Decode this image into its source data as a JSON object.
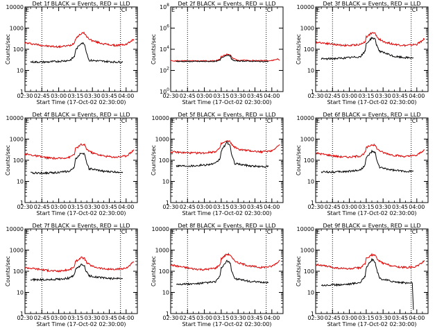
{
  "x_tick_labels_a": [
    "02:30",
    "02:45",
    "03:00",
    "03:15",
    "03:30",
    "03:45",
    "04:00"
  ],
  "x_tick_labels_b": [
    "02:30",
    "02:45",
    "03:00",
    "03:15",
    "03:30",
    "03:45",
    "04:00"
  ],
  "xlabel": "Start Time (17-Oct-02 02:30:00)",
  "ylabel": "Counts/sec",
  "colors": {
    "events": "#000000",
    "lld": "#e00000",
    "axes": "#000000"
  },
  "chart_data": [
    {
      "type": "line",
      "panel": "1",
      "title": "Det 1f BLACK = Events, RED = LLD",
      "xlim_min": [
        0,
        100
      ],
      "yscale": "log",
      "ylim": [
        1,
        10000
      ],
      "y_ticks": [
        "1",
        "10",
        "100",
        "1000",
        "10000"
      ],
      "vlines_min": [
        15,
        85
      ],
      "markers": [
        "E",
        "C"
      ],
      "series": [
        {
          "name": "LLD",
          "color": "#e00000",
          "x": [
            0,
            10,
            20,
            30,
            40,
            44,
            45,
            50,
            53,
            55,
            60,
            70,
            80,
            90,
            95,
            97
          ],
          "y": [
            200,
            170,
            140,
            130,
            150,
            200,
            330,
            550,
            580,
            380,
            250,
            180,
            150,
            170,
            250,
            300
          ]
        },
        {
          "name": "Events",
          "color": "#000000",
          "x": [
            5,
            10,
            20,
            30,
            40,
            44,
            45,
            50,
            53,
            54,
            57,
            70,
            80,
            87
          ],
          "y": [
            25,
            25,
            25,
            27,
            30,
            45,
            90,
            200,
            180,
            100,
            30,
            27,
            25,
            25
          ]
        }
      ]
    },
    {
      "type": "line",
      "panel": "2",
      "title": "Det 2f BLACK = Events, RED = LLD",
      "xlim_min": [
        0,
        100
      ],
      "yscale": "log",
      "ylim": [
        1,
        100000000
      ],
      "y_ticks": [
        "10^0",
        "10^2",
        "10^4",
        "10^6",
        "10^8"
      ],
      "vlines_min": [
        15,
        85
      ],
      "markers": [
        "E",
        "C"
      ],
      "series": [
        {
          "name": "LLD",
          "color": "#e00000",
          "x": [
            0,
            10,
            20,
            30,
            40,
            44,
            45,
            50,
            53,
            55,
            60,
            70,
            80,
            90,
            95,
            97
          ],
          "y": [
            800,
            800,
            800,
            800,
            800,
            1100,
            2000,
            3500,
            3000,
            1400,
            950,
            850,
            850,
            850,
            1200,
            950
          ]
        },
        {
          "name": "Events",
          "color": "#000000",
          "x": [
            5,
            10,
            20,
            30,
            40,
            44,
            45,
            50,
            53,
            54,
            57,
            70,
            80,
            87
          ],
          "y": [
            700,
            700,
            700,
            700,
            720,
            900,
            1600,
            2800,
            2400,
            1200,
            800,
            750,
            700,
            700
          ]
        }
      ]
    },
    {
      "type": "line",
      "panel": "3",
      "title": "Det 3f BLACK = Events, RED = LLD",
      "xlim_min": [
        0,
        100
      ],
      "yscale": "log",
      "ylim": [
        1,
        10000
      ],
      "y_ticks": [
        "1",
        "10",
        "100",
        "1000",
        "10000"
      ],
      "vlines_min": [
        15,
        85
      ],
      "markers": [
        "E",
        "C"
      ],
      "series": [
        {
          "name": "LLD",
          "color": "#e00000",
          "x": [
            0,
            10,
            20,
            30,
            40,
            44,
            45,
            50,
            53,
            55,
            60,
            70,
            80,
            90,
            95,
            97
          ],
          "y": [
            220,
            190,
            160,
            150,
            170,
            230,
            380,
            600,
            550,
            350,
            230,
            170,
            150,
            170,
            260,
            320
          ]
        },
        {
          "name": "Events",
          "color": "#000000",
          "x": [
            5,
            10,
            20,
            30,
            40,
            44,
            45,
            50,
            53,
            54,
            57,
            70,
            80,
            87
          ],
          "y": [
            35,
            35,
            37,
            40,
            45,
            80,
            180,
            350,
            300,
            170,
            80,
            45,
            40,
            40
          ]
        }
      ]
    },
    {
      "type": "line",
      "panel": "4",
      "title": "Det 4f BLACK = Events, RED = LLD",
      "xlim_min": [
        0,
        100
      ],
      "yscale": "log",
      "ylim": [
        1,
        10000
      ],
      "y_ticks": [
        "1",
        "10",
        "100",
        "1000",
        "10000"
      ],
      "vlines_min": [
        15,
        85
      ],
      "markers": [
        "E",
        "C"
      ],
      "series": [
        {
          "name": "LLD",
          "color": "#e00000",
          "x": [
            0,
            10,
            20,
            30,
            40,
            44,
            45,
            50,
            53,
            55,
            60,
            70,
            80,
            90,
            95,
            97
          ],
          "y": [
            200,
            160,
            130,
            120,
            140,
            200,
            350,
            550,
            520,
            330,
            220,
            160,
            140,
            160,
            250,
            320
          ]
        },
        {
          "name": "Events",
          "color": "#000000",
          "x": [
            5,
            10,
            20,
            30,
            40,
            44,
            45,
            50,
            53,
            54,
            57,
            70,
            80,
            87
          ],
          "y": [
            25,
            25,
            25,
            27,
            30,
            50,
            110,
            230,
            200,
            110,
            40,
            30,
            28,
            28
          ]
        }
      ]
    },
    {
      "type": "line",
      "panel": "5",
      "title": "Det 5f BLACK = Events, RED = LLD",
      "xlim_min": [
        0,
        100
      ],
      "yscale": "log",
      "ylim": [
        1,
        10000
      ],
      "y_ticks": [
        "1",
        "10",
        "100",
        "1000",
        "10000"
      ],
      "vlines_min": [
        15,
        85
      ],
      "markers": [
        "E",
        "C"
      ],
      "series": [
        {
          "name": "LLD",
          "color": "#e00000",
          "x": [
            0,
            10,
            20,
            30,
            40,
            44,
            45,
            50,
            53,
            55,
            60,
            70,
            80,
            90,
            95,
            97
          ],
          "y": [
            250,
            230,
            220,
            220,
            260,
            380,
            600,
            800,
            750,
            500,
            330,
            280,
            250,
            280,
            450,
            550
          ]
        },
        {
          "name": "Events",
          "color": "#000000",
          "x": [
            5,
            10,
            20,
            30,
            40,
            44,
            45,
            50,
            53,
            54,
            57,
            70,
            80,
            87
          ],
          "y": [
            55,
            55,
            55,
            60,
            70,
            120,
            280,
            700,
            500,
            200,
            70,
            55,
            50,
            50
          ]
        }
      ]
    },
    {
      "type": "line",
      "panel": "6",
      "title": "Det 6f BLACK = Events, RED = LLD",
      "xlim_min": [
        0,
        100
      ],
      "yscale": "log",
      "ylim": [
        1,
        10000
      ],
      "y_ticks": [
        "1",
        "10",
        "100",
        "1000",
        "10000"
      ],
      "vlines_min": [
        15,
        85
      ],
      "markers": [
        "E",
        "C"
      ],
      "series": [
        {
          "name": "LLD",
          "color": "#e00000",
          "x": [
            0,
            10,
            20,
            30,
            40,
            44,
            45,
            50,
            53,
            55,
            60,
            70,
            80,
            90,
            95,
            97
          ],
          "y": [
            220,
            180,
            150,
            140,
            160,
            230,
            380,
            550,
            500,
            330,
            230,
            170,
            150,
            170,
            270,
            320
          ]
        },
        {
          "name": "Events",
          "color": "#000000",
          "x": [
            5,
            10,
            20,
            30,
            40,
            44,
            45,
            50,
            53,
            54,
            57,
            70,
            80,
            87
          ],
          "y": [
            28,
            28,
            28,
            30,
            35,
            60,
            130,
            260,
            220,
            120,
            45,
            33,
            30,
            30
          ]
        }
      ]
    },
    {
      "type": "line",
      "panel": "7",
      "title": "Det 7f BLACK = Events, RED = LLD",
      "xlim_min": [
        0,
        100
      ],
      "yscale": "log",
      "ylim": [
        1,
        10000
      ],
      "y_ticks": [
        "1",
        "10",
        "100",
        "1000",
        "10000"
      ],
      "vlines_min": [
        15,
        85
      ],
      "markers": [
        "E",
        "C"
      ],
      "series": [
        {
          "name": "LLD",
          "color": "#e00000",
          "x": [
            0,
            10,
            20,
            30,
            40,
            44,
            45,
            50,
            53,
            55,
            60,
            70,
            80,
            90,
            95,
            97
          ],
          "y": [
            150,
            130,
            110,
            100,
            120,
            170,
            280,
            450,
            400,
            250,
            170,
            130,
            120,
            140,
            230,
            280
          ]
        },
        {
          "name": "Events",
          "color": "#000000",
          "x": [
            5,
            10,
            20,
            30,
            40,
            44,
            45,
            50,
            53,
            54,
            57,
            70,
            80,
            87
          ],
          "y": [
            40,
            40,
            40,
            42,
            48,
            70,
            120,
            200,
            180,
            110,
            60,
            48,
            45,
            45
          ]
        }
      ]
    },
    {
      "type": "line",
      "panel": "8",
      "title": "Det 8f BLACK = Events, RED = LLD",
      "xlim_min": [
        0,
        100
      ],
      "yscale": "log",
      "ylim": [
        1,
        10000
      ],
      "y_ticks": [
        "1",
        "10",
        "100",
        "1000",
        "10000"
      ],
      "vlines_min": [
        15,
        85
      ],
      "markers": [
        "E",
        "C"
      ],
      "series": [
        {
          "name": "LLD",
          "color": "#e00000",
          "x": [
            0,
            10,
            20,
            30,
            40,
            44,
            45,
            50,
            53,
            55,
            60,
            70,
            80,
            90,
            95,
            97
          ],
          "y": [
            200,
            160,
            130,
            120,
            140,
            210,
            380,
            650,
            600,
            380,
            250,
            180,
            150,
            170,
            260,
            330
          ]
        },
        {
          "name": "Events",
          "color": "#000000",
          "x": [
            5,
            10,
            20,
            30,
            40,
            44,
            45,
            50,
            53,
            54,
            57,
            70,
            80,
            87
          ],
          "y": [
            25,
            25,
            25,
            28,
            32,
            60,
            140,
            300,
            250,
            120,
            45,
            33,
            30,
            30
          ]
        }
      ]
    },
    {
      "type": "line",
      "panel": "9",
      "title": "Det 9f BLACK = Events, RED = LLD",
      "xlim_min": [
        0,
        100
      ],
      "yscale": "log",
      "ylim": [
        1,
        10000
      ],
      "y_ticks": [
        "1",
        "10",
        "100",
        "1000",
        "10000"
      ],
      "vlines_min": [
        15,
        85
      ],
      "markers": [
        "E",
        "C"
      ],
      "series": [
        {
          "name": "LLD",
          "color": "#e00000",
          "x": [
            0,
            10,
            20,
            30,
            40,
            44,
            45,
            50,
            53,
            55,
            60,
            70,
            80,
            90,
            95,
            97
          ],
          "y": [
            210,
            170,
            140,
            130,
            150,
            220,
            400,
            600,
            550,
            350,
            240,
            170,
            150,
            170,
            260,
            320
          ]
        },
        {
          "name": "Events",
          "color": "#000000",
          "x": [
            5,
            10,
            20,
            30,
            40,
            44,
            45,
            50,
            53,
            54,
            57,
            70,
            80,
            86,
            87
          ],
          "y": [
            22,
            22,
            23,
            25,
            30,
            60,
            150,
            350,
            280,
            130,
            45,
            32,
            28,
            28,
            1.5
          ]
        }
      ]
    }
  ]
}
